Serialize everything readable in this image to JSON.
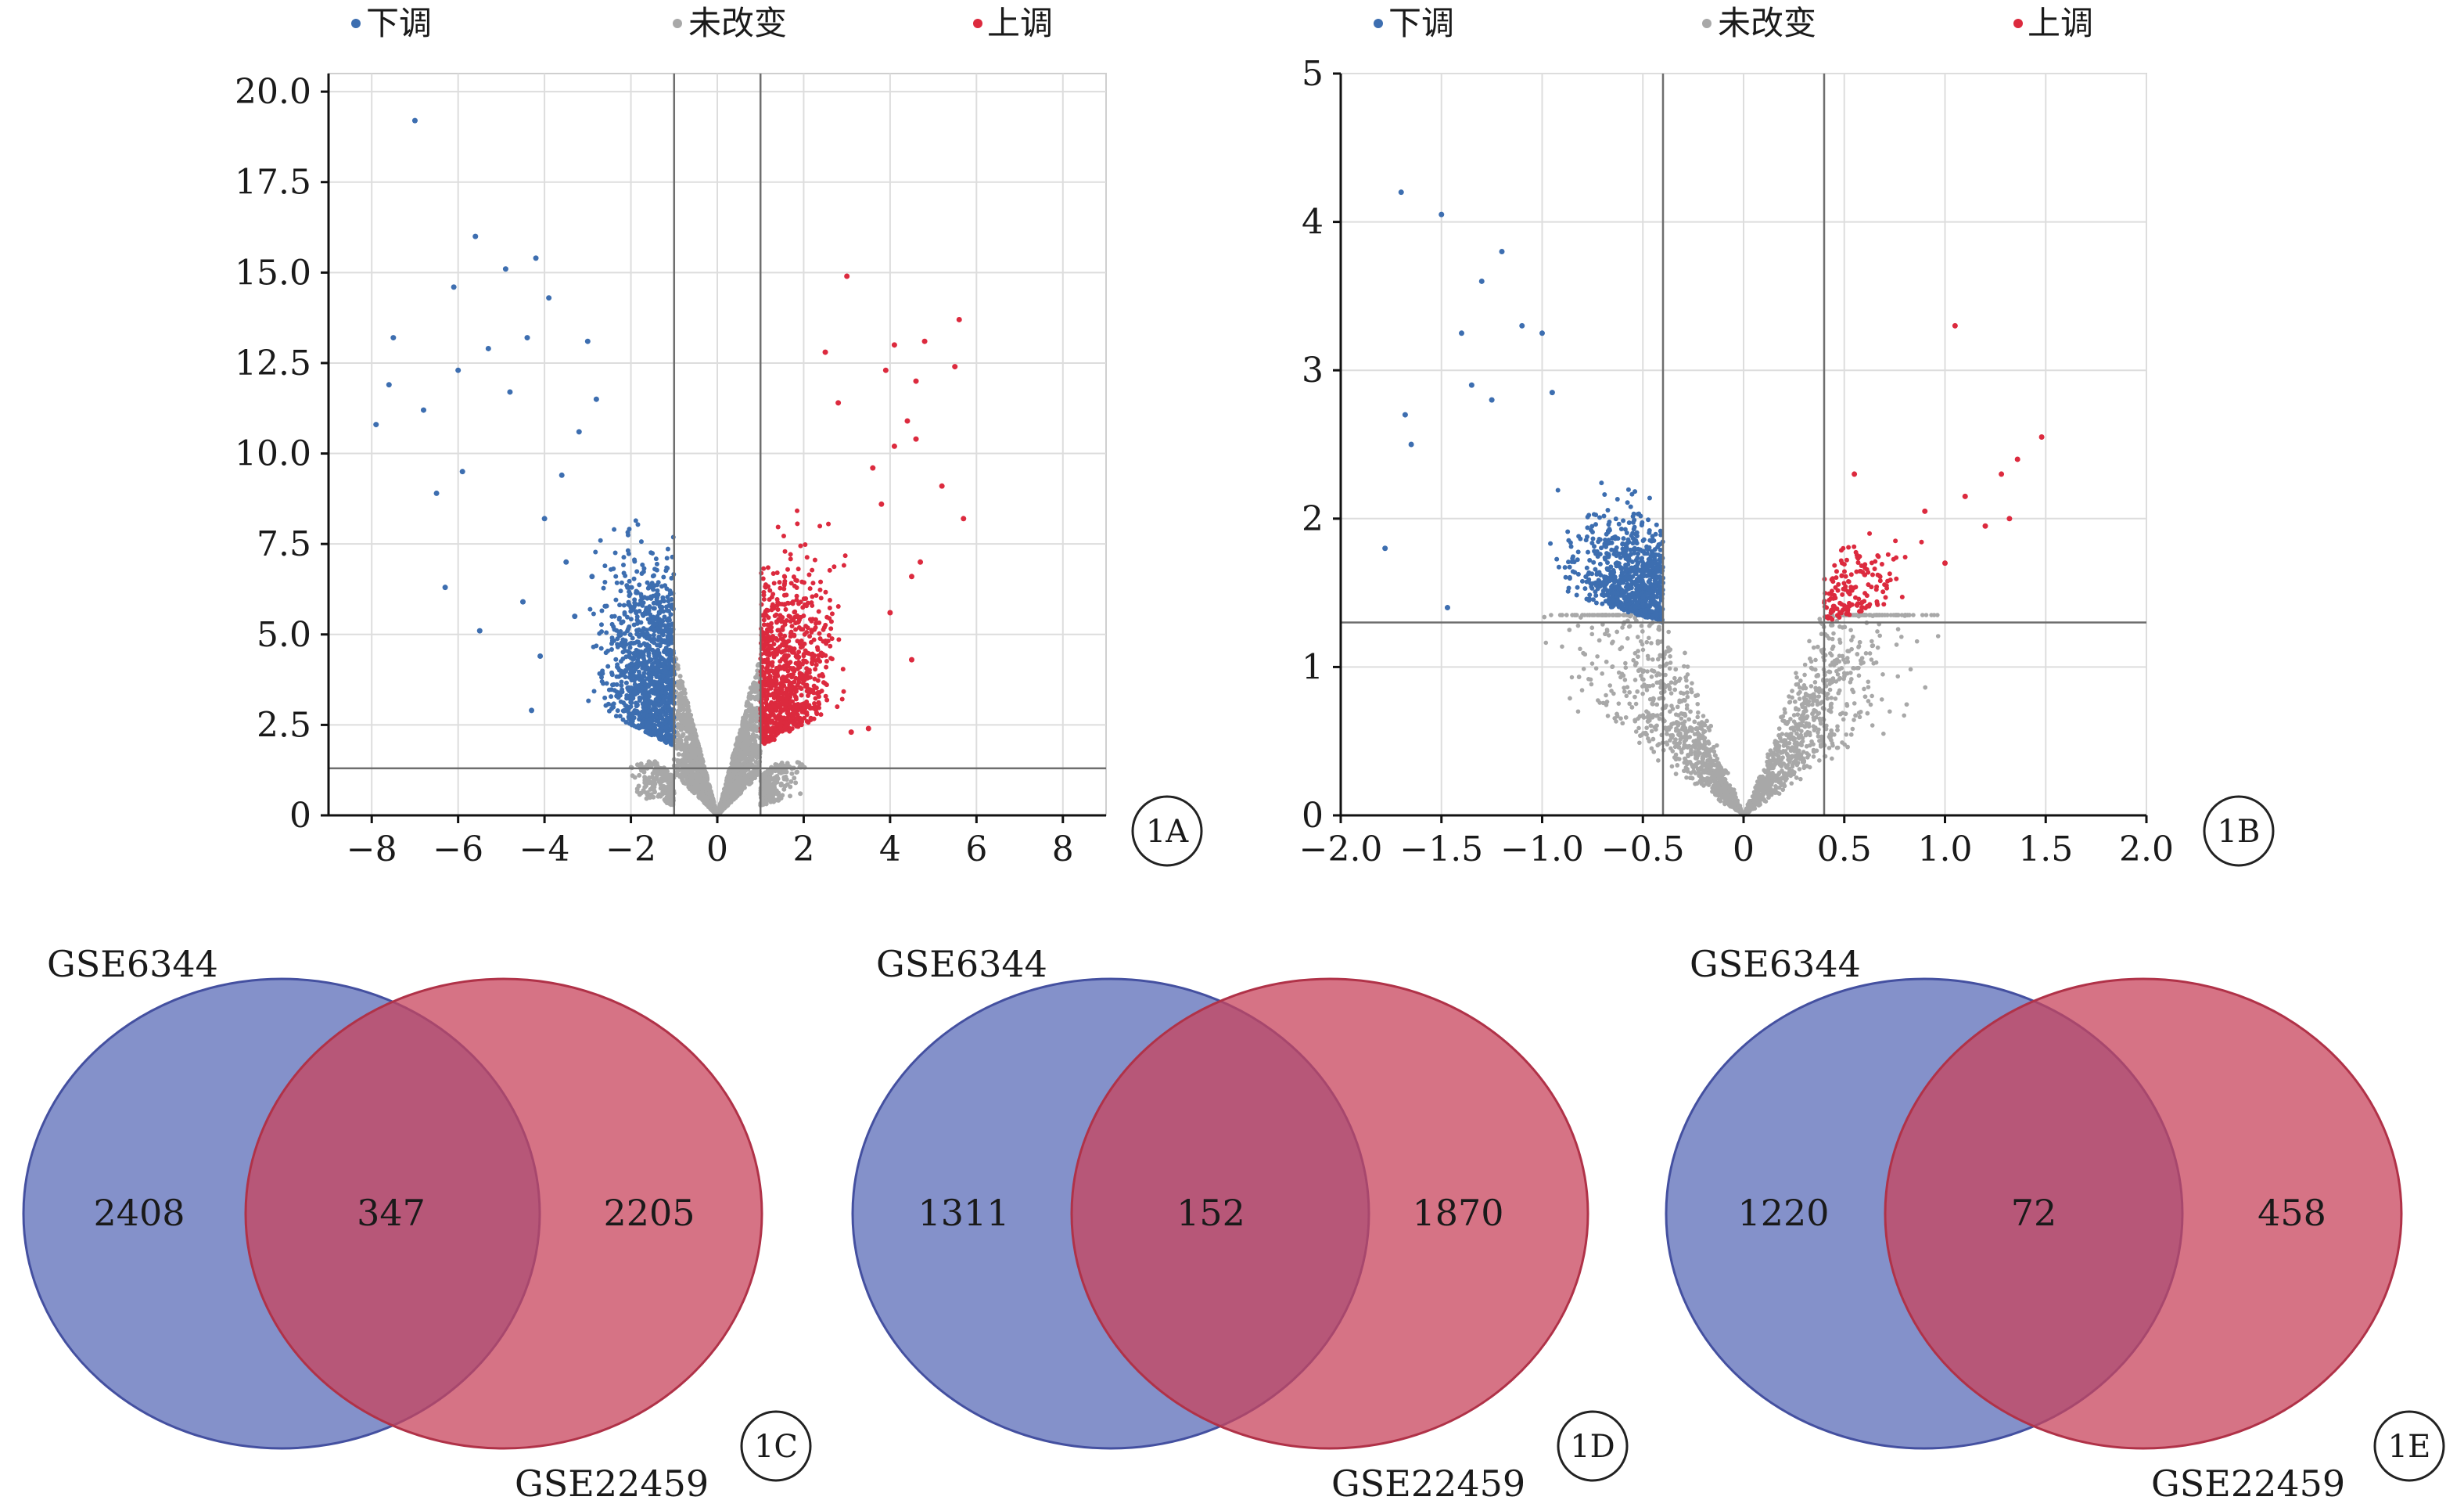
{
  "chart_data": [
    {
      "type": "scatter",
      "panel_label": "1A",
      "legend": [
        {
          "label": "下调",
          "color": "#3d6eb0"
        },
        {
          "label": "未改变",
          "color": "#a8a8a8"
        },
        {
          "label": "上调",
          "color": "#dc2a3e"
        }
      ],
      "legend_placement": "top",
      "xlim": [
        -9,
        9
      ],
      "ylim": [
        0,
        20.5
      ],
      "xticks": [
        "−8",
        "−6",
        "−4",
        "−2",
        "0",
        "2",
        "4",
        "6",
        "8"
      ],
      "xtick_values": [
        -8,
        -6,
        -4,
        -2,
        0,
        2,
        4,
        6,
        8
      ],
      "yticks": [
        "0",
        "2.5",
        "5.0",
        "7.5",
        "10.0",
        "12.5",
        "15.0",
        "17.5",
        "20.0"
      ],
      "ytick_values": [
        0,
        2.5,
        5,
        7.5,
        10,
        12.5,
        15,
        17.5,
        20
      ],
      "thresholds": {
        "x": [
          -1,
          1
        ],
        "y": 1.3
      },
      "grid": true,
      "series": [
        {
          "name": "下调",
          "color": "#3d6eb0",
          "points": [
            [
              -7.0,
              19.2
            ],
            [
              -5.6,
              16.0
            ],
            [
              -4.9,
              15.1
            ],
            [
              -4.2,
              15.4
            ],
            [
              -6.1,
              14.6
            ],
            [
              -3.9,
              14.3
            ],
            [
              -7.5,
              13.2
            ],
            [
              -4.4,
              13.2
            ],
            [
              -5.3,
              12.9
            ],
            [
              -6.0,
              12.3
            ],
            [
              -3.0,
              13.1
            ],
            [
              -7.6,
              11.9
            ],
            [
              -7.9,
              10.8
            ],
            [
              -6.8,
              11.2
            ],
            [
              -4.8,
              11.7
            ],
            [
              -5.9,
              9.5
            ],
            [
              -6.5,
              8.9
            ],
            [
              -6.3,
              6.3
            ],
            [
              -5.5,
              5.1
            ],
            [
              -4.3,
              2.9
            ],
            [
              -3.6,
              9.4
            ],
            [
              -3.2,
              10.6
            ],
            [
              -4.0,
              8.2
            ],
            [
              -2.8,
              11.5
            ],
            [
              -3.5,
              7.0
            ],
            [
              -4.5,
              5.9
            ],
            [
              -4.1,
              4.4
            ],
            [
              -3.3,
              5.5
            ],
            [
              -2.9,
              6.6
            ]
          ]
        },
        {
          "name": "上调",
          "color": "#dc2a3e",
          "points": [
            [
              3.0,
              14.9
            ],
            [
              5.6,
              13.7
            ],
            [
              4.1,
              13.0
            ],
            [
              4.8,
              13.1
            ],
            [
              5.5,
              12.4
            ],
            [
              2.5,
              12.8
            ],
            [
              3.9,
              12.3
            ],
            [
              4.6,
              12.0
            ],
            [
              2.8,
              11.4
            ],
            [
              4.4,
              10.9
            ],
            [
              4.6,
              10.4
            ],
            [
              4.1,
              10.2
            ],
            [
              5.7,
              8.2
            ],
            [
              4.7,
              7.0
            ],
            [
              5.2,
              9.1
            ],
            [
              3.8,
              8.6
            ],
            [
              4.0,
              5.6
            ],
            [
              4.5,
              4.3
            ],
            [
              3.5,
              2.4
            ],
            [
              3.1,
              2.3
            ],
            [
              4.5,
              6.6
            ],
            [
              3.6,
              9.6
            ]
          ]
        }
      ]
    },
    {
      "type": "scatter",
      "panel_label": "1B",
      "legend": [
        {
          "label": "下调",
          "color": "#3d6eb0"
        },
        {
          "label": "未改变",
          "color": "#a8a8a8"
        },
        {
          "label": "上调",
          "color": "#dc2a3e"
        }
      ],
      "legend_placement": "top",
      "xlim": [
        -2.0,
        2.0
      ],
      "ylim": [
        0,
        5
      ],
      "xticks": [
        "−2.0",
        "−1.5",
        "−1.0",
        "−0.5",
        "0",
        "0.5",
        "1.0",
        "1.5",
        "2.0"
      ],
      "xtick_values": [
        -2.0,
        -1.5,
        -1.0,
        -0.5,
        0,
        0.5,
        1.0,
        1.5,
        2.0
      ],
      "yticks": [
        "0",
        "1",
        "2",
        "3",
        "4",
        "5"
      ],
      "ytick_values": [
        0,
        1,
        2,
        3,
        4,
        5
      ],
      "thresholds": {
        "x": [
          -0.4,
          0.4
        ],
        "y": 1.3
      },
      "grid": true,
      "series": [
        {
          "name": "下调",
          "color": "#3d6eb0",
          "points": [
            [
              -1.7,
              4.2
            ],
            [
              -1.5,
              4.05
            ],
            [
              -1.2,
              3.8
            ],
            [
              -1.3,
              3.6
            ],
            [
              -1.4,
              3.25
            ],
            [
              -1.1,
              3.3
            ],
            [
              -1.0,
              3.25
            ],
            [
              -1.68,
              2.7
            ],
            [
              -1.65,
              2.5
            ],
            [
              -1.78,
              1.8
            ],
            [
              -1.47,
              1.4
            ],
            [
              -1.35,
              2.9
            ],
            [
              -1.25,
              2.8
            ],
            [
              -0.95,
              2.85
            ]
          ]
        },
        {
          "name": "上调",
          "color": "#dc2a3e",
          "points": [
            [
              1.05,
              3.3
            ],
            [
              1.48,
              2.55
            ],
            [
              1.36,
              2.4
            ],
            [
              1.28,
              2.3
            ],
            [
              1.2,
              1.95
            ],
            [
              0.55,
              2.3
            ],
            [
              1.1,
              2.15
            ],
            [
              0.9,
              2.05
            ],
            [
              1.0,
              1.7
            ],
            [
              1.32,
              2.0
            ]
          ]
        }
      ]
    },
    {
      "type": "venn",
      "panel_label": "1C",
      "sets": [
        {
          "name": "GSE6344",
          "color": "#5b6cb8",
          "only": "2408"
        },
        {
          "name": "GSE22459",
          "color": "#c8445c",
          "only": "2205"
        }
      ],
      "intersection": "347"
    },
    {
      "type": "venn",
      "panel_label": "1D",
      "sets": [
        {
          "name": "GSE6344",
          "color": "#5b6cb8",
          "only": "1311"
        },
        {
          "name": "GSE22459",
          "color": "#c8445c",
          "only": "1870"
        }
      ],
      "intersection": "152"
    },
    {
      "type": "venn",
      "panel_label": "1E",
      "sets": [
        {
          "name": "GSE6344",
          "color": "#5b6cb8",
          "only": "1220"
        },
        {
          "name": "GSE22459",
          "color": "#c8445c",
          "only": "458"
        }
      ],
      "intersection": "72"
    }
  ]
}
